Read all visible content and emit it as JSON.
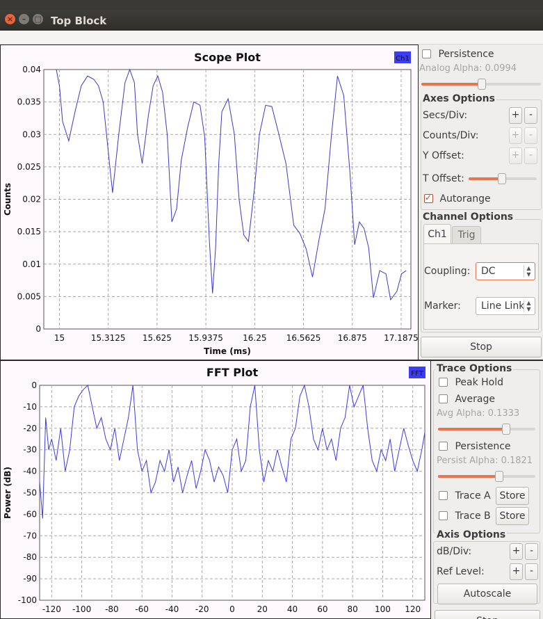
{
  "window": {
    "title": "Top Block"
  },
  "scope": {
    "title": "Scope Plot",
    "legend": "Ch1",
    "legend_color": "#3c3cf0",
    "trace_color": "#3a3ac8",
    "xlabel": "Time (ms)",
    "ylabel": "Counts",
    "yticks": [
      "0.04",
      "0.035",
      "0.03",
      "0.025",
      "0.02",
      "0.015",
      "0.01",
      "0.005",
      "0"
    ],
    "xticks": [
      "15",
      "15.3125",
      "15.625",
      "15.9375",
      "16.25",
      "16.5625",
      "16.875",
      "17.1875"
    ],
    "panel": {
      "persistence_label": "Persistence",
      "analog_alpha_label": "Analog Alpha: 0.0994",
      "analog_alpha_value": 0.0994,
      "axes_title": "Axes Options",
      "secs_div": "Secs/Div:",
      "counts_div": "Counts/Div:",
      "y_offset": "Y Offset:",
      "t_offset": "T Offset:",
      "autorange": "Autorange",
      "channel_title": "Channel Options",
      "tab_ch1": "Ch1",
      "tab_trig": "Trig",
      "coupling_label": "Coupling:",
      "coupling_value": "DC",
      "marker_label": "Marker:",
      "marker_value": "Line Link",
      "stop": "Stop",
      "plus": "+",
      "minus": "-"
    }
  },
  "fft": {
    "title": "FFT Plot",
    "legend": "FFT",
    "legend_color": "#3c3cf0",
    "trace_color": "#3a3ae8",
    "ylabel": "Power (dB)",
    "yticks": [
      "0",
      "-10",
      "-20",
      "-30",
      "-40",
      "-50",
      "-60",
      "-70",
      "-80",
      "-90",
      "-100"
    ],
    "xticks": [
      "-120",
      "-100",
      "-80",
      "-60",
      "-40",
      "-20",
      "0",
      "20",
      "40",
      "60",
      "80",
      "100",
      "120"
    ],
    "panel": {
      "trace_title": "Trace Options",
      "peak_hold": "Peak Hold",
      "average": "Average",
      "avg_alpha_label": "Avg Alpha: 0.1333",
      "avg_alpha_value": 0.1333,
      "persistence": "Persistence",
      "persist_alpha_label": "Persist Alpha: 0.1821",
      "persist_alpha_value": 0.1821,
      "trace_a": "Trace A",
      "trace_b": "Trace B",
      "store": "Store",
      "axis_title": "Axis Options",
      "db_div": "dB/Div:",
      "ref_level": "Ref Level:",
      "autoscale": "Autoscale",
      "stop": "Stop",
      "plus": "+",
      "minus": "-"
    }
  },
  "chart_data": [
    {
      "type": "line",
      "title": "Scope Plot",
      "xlabel": "Time (ms)",
      "ylabel": "Counts",
      "xlim": [
        14.9,
        17.25
      ],
      "ylim": [
        0,
        0.04
      ],
      "grid": true,
      "legend": "top-right",
      "series": [
        {
          "name": "Ch1",
          "x": [
            14.98,
            15.0,
            15.02,
            15.06,
            15.1,
            15.14,
            15.18,
            15.22,
            15.25,
            15.28,
            15.31,
            15.34,
            15.38,
            15.42,
            15.45,
            15.48,
            15.5,
            15.53,
            15.57,
            15.6,
            15.63,
            15.66,
            15.69,
            15.72,
            15.75,
            15.78,
            15.82,
            15.86,
            15.9,
            15.93,
            15.96,
            15.98,
            16.0,
            16.02,
            16.04,
            16.08,
            16.12,
            16.15,
            16.18,
            16.21,
            16.25,
            16.28,
            16.32,
            16.36,
            16.4,
            16.45,
            16.5,
            16.54,
            16.58,
            16.62,
            16.66,
            16.7,
            16.74,
            16.78,
            16.82,
            16.86,
            16.89,
            16.92,
            16.95,
            16.98,
            17.01,
            17.05,
            17.09,
            17.12,
            17.16,
            17.19,
            17.22
          ],
          "y": [
            0.04,
            0.0375,
            0.032,
            0.029,
            0.0335,
            0.0375,
            0.039,
            0.0385,
            0.0375,
            0.035,
            0.028,
            0.021,
            0.03,
            0.038,
            0.0405,
            0.038,
            0.03,
            0.0255,
            0.033,
            0.0375,
            0.039,
            0.0365,
            0.03,
            0.0165,
            0.0185,
            0.026,
            0.031,
            0.035,
            0.0345,
            0.0296,
            0.0135,
            0.0055,
            0.0125,
            0.0255,
            0.0335,
            0.0355,
            0.03,
            0.02,
            0.0145,
            0.0135,
            0.022,
            0.03,
            0.0345,
            0.0343,
            0.0305,
            0.0255,
            0.016,
            0.0147,
            0.0123,
            0.008,
            0.0135,
            0.0185,
            0.0295,
            0.039,
            0.036,
            0.024,
            0.013,
            0.0165,
            0.0155,
            0.0125,
            0.0048,
            0.009,
            0.0085,
            0.0045,
            0.0058,
            0.0085,
            0.009
          ]
        }
      ]
    },
    {
      "type": "line",
      "title": "FFT Plot",
      "xlabel": "",
      "ylabel": "Power (dB)",
      "xlim": [
        -128,
        128
      ],
      "ylim": [
        -100,
        0
      ],
      "grid": true,
      "legend": "top-right",
      "series": [
        {
          "name": "FFT",
          "x": [
            -128,
            -126,
            -124,
            -122,
            -120,
            -117,
            -114,
            -111,
            -108,
            -105,
            -102,
            -99,
            -96,
            -93,
            -90,
            -87,
            -84,
            -81,
            -78,
            -75,
            -72,
            -69,
            -66,
            -63,
            -60,
            -57,
            -54,
            -51,
            -48,
            -45,
            -42,
            -39,
            -36,
            -33,
            -30,
            -27,
            -24,
            -21,
            -18,
            -15,
            -12,
            -9,
            -6,
            -3,
            0,
            3,
            6,
            9,
            12,
            15,
            18,
            21,
            24,
            27,
            30,
            33,
            36,
            39,
            42,
            45,
            48,
            51,
            54,
            57,
            60,
            63,
            66,
            69,
            72,
            75,
            78,
            81,
            84,
            87,
            90,
            93,
            96,
            99,
            102,
            105,
            108,
            111,
            114,
            117,
            120,
            123,
            126,
            128
          ],
          "y": [
            -45,
            -62,
            -15,
            -30,
            -25,
            -35,
            -20,
            -40,
            -30,
            -10,
            -5,
            -2,
            0,
            -10,
            -20,
            -15,
            -25,
            -30,
            -20,
            -35,
            -25,
            -15,
            0,
            -30,
            -40,
            -35,
            -50,
            -45,
            -35,
            -40,
            -30,
            -45,
            -38,
            -50,
            -42,
            -35,
            -48,
            -40,
            -30,
            -35,
            -45,
            -38,
            -42,
            -50,
            -30,
            -25,
            -40,
            -35,
            -10,
            0,
            -30,
            -45,
            -35,
            -40,
            -30,
            -38,
            -45,
            -25,
            -20,
            -5,
            0,
            -10,
            -25,
            -30,
            -20,
            -30,
            -25,
            -35,
            -20,
            -15,
            0,
            -10,
            -5,
            0,
            -20,
            -35,
            -40,
            -30,
            -35,
            -25,
            -40,
            -30,
            -20,
            -28,
            -35,
            -40,
            -30,
            -22
          ]
        }
      ]
    }
  ]
}
